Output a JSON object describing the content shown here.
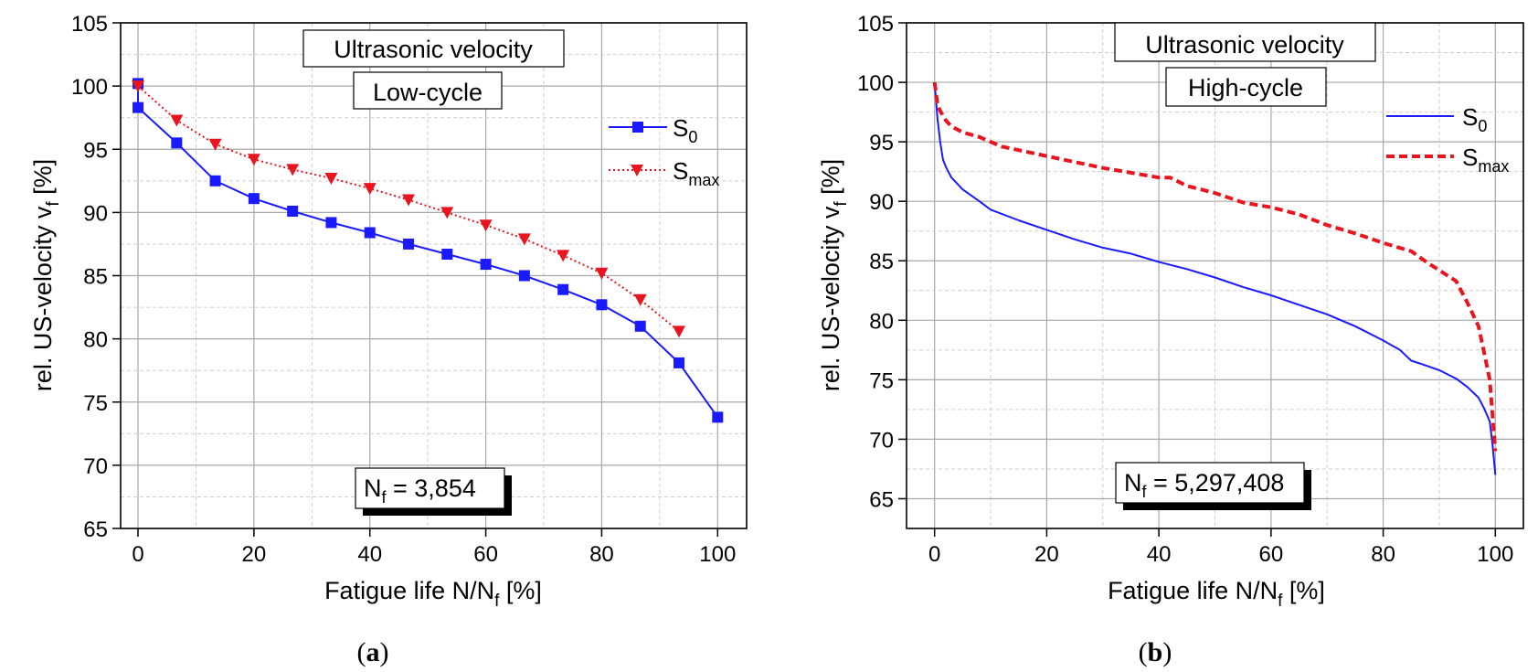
{
  "chart_data": [
    {
      "panel": "a",
      "type": "line",
      "caption_prefix": "(",
      "caption_letter": "a",
      "caption_suffix": ")",
      "title_lines": [
        "Ultrasonic velocity",
        "Low-cycle"
      ],
      "note_main": "N",
      "note_sub": "f",
      "note_value": " = 3,854",
      "xlabel_main": "Fatigue life N/N",
      "xlabel_sub": "f",
      "xlabel_end": " [%]",
      "ylabel_main": "rel. US-velocity v",
      "ylabel_sub": "f",
      "ylabel_end": " [%]",
      "xlim": [
        -3,
        105
      ],
      "ylim": [
        65,
        105
      ],
      "xticks": [
        0,
        20,
        40,
        60,
        80,
        100
      ],
      "yticks": [
        65,
        70,
        75,
        80,
        85,
        90,
        95,
        100,
        105
      ],
      "grid": true,
      "legend_position": "top-right",
      "series": [
        {
          "name": "S",
          "name_sub": "0",
          "color": "#1a1aff",
          "style": "solid",
          "marker": "square",
          "x": [
            0,
            0,
            6.67,
            13.33,
            20,
            26.67,
            33.33,
            40,
            46.67,
            53.33,
            60,
            66.67,
            73.33,
            80,
            86.67,
            93.33,
            100
          ],
          "y": [
            100.2,
            98.3,
            95.5,
            92.5,
            91.1,
            90.1,
            89.2,
            88.4,
            87.5,
            86.7,
            85.9,
            85.0,
            83.9,
            82.7,
            81.0,
            78.1,
            73.8
          ]
        },
        {
          "name": "S",
          "name_sub": "max",
          "color": "#e8141e",
          "style": "dotted",
          "marker": "triangle-down",
          "x": [
            0,
            6.67,
            13.33,
            20,
            26.67,
            33.33,
            40,
            46.67,
            53.33,
            60,
            66.67,
            73.33,
            80,
            86.67,
            93.33
          ],
          "y": [
            100.0,
            97.3,
            95.4,
            94.2,
            93.4,
            92.7,
            91.9,
            91.0,
            90.0,
            89.0,
            87.9,
            86.6,
            85.2,
            83.1,
            80.6
          ]
        }
      ]
    },
    {
      "panel": "b",
      "type": "line",
      "caption_prefix": "(",
      "caption_letter": "b",
      "caption_suffix": ")",
      "title_lines": [
        "Ultrasonic velocity",
        "High-cycle"
      ],
      "note_main": "N",
      "note_sub": "f",
      "note_value": " = 5,297,408",
      "xlabel_main": "Fatigue life N/N",
      "xlabel_sub": "f",
      "xlabel_end": " [%]",
      "ylabel_main": "rel. US-velocity v",
      "ylabel_sub": "f",
      "ylabel_end": " [%]",
      "xlim": [
        -5,
        105
      ],
      "ylim": [
        62.5,
        105
      ],
      "xticks": [
        0,
        20,
        40,
        60,
        80,
        100
      ],
      "yticks": [
        65,
        70,
        75,
        80,
        85,
        90,
        95,
        100,
        105
      ],
      "grid": true,
      "legend_position": "top-right",
      "series": [
        {
          "name": "S",
          "name_sub": "0",
          "color": "#1a1aff",
          "style": "solid",
          "marker": "none",
          "x": [
            0,
            0.5,
            1,
            1.5,
            2,
            3,
            5,
            8,
            10,
            15,
            20,
            25,
            30,
            35,
            40,
            45,
            50,
            55,
            60,
            65,
            70,
            75,
            80,
            83,
            85,
            87,
            90,
            93,
            95,
            97,
            98,
            99,
            99.5,
            100
          ],
          "y": [
            100,
            97,
            95,
            93.5,
            92.9,
            92.0,
            91.0,
            90.0,
            89.3,
            88.4,
            87.6,
            86.8,
            86.1,
            85.6,
            84.9,
            84.3,
            83.6,
            82.8,
            82.1,
            81.3,
            80.5,
            79.5,
            78.3,
            77.5,
            76.6,
            76.3,
            75.8,
            75.1,
            74.4,
            73.5,
            72.6,
            71.5,
            69.5,
            67.0
          ]
        },
        {
          "name": "S",
          "name_sub": "max",
          "color": "#e8141e",
          "style": "dashed",
          "marker": "none",
          "x": [
            0,
            0.5,
            1,
            2,
            3,
            5,
            8,
            10,
            12,
            15,
            20,
            25,
            30,
            35,
            40,
            42,
            45,
            50,
            55,
            60,
            65,
            70,
            75,
            80,
            85,
            88,
            90,
            93,
            95,
            97,
            98,
            99,
            99.5,
            100
          ],
          "y": [
            100,
            98.2,
            97.6,
            96.8,
            96.3,
            95.8,
            95.4,
            95.0,
            94.6,
            94.3,
            93.8,
            93.3,
            92.8,
            92.4,
            92.0,
            92.0,
            91.3,
            90.7,
            89.9,
            89.5,
            88.9,
            88.0,
            87.3,
            86.5,
            85.8,
            84.8,
            84.2,
            83.3,
            81.5,
            79.5,
            77.3,
            75.0,
            72.0,
            69.0
          ]
        }
      ]
    }
  ]
}
